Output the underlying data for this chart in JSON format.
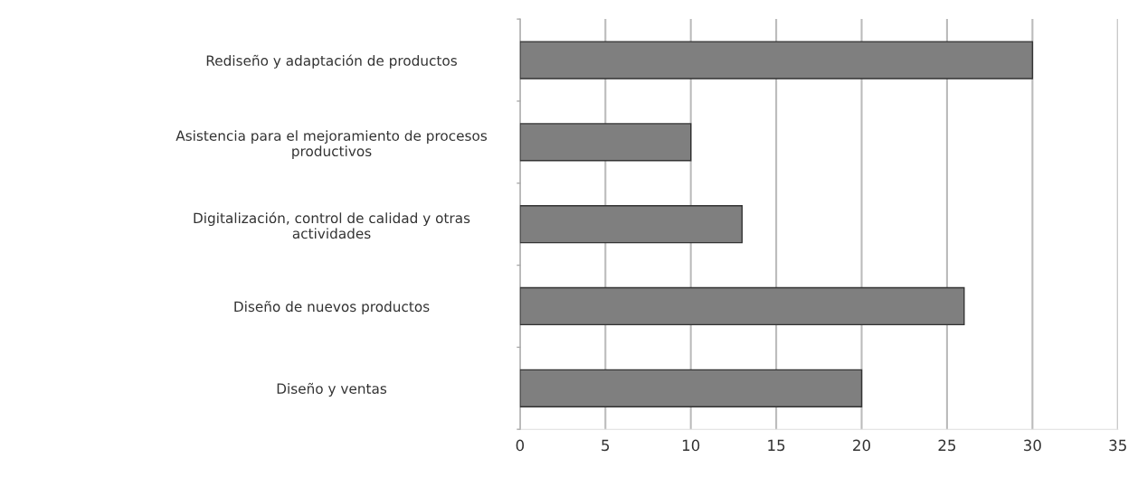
{
  "chart_data": {
    "type": "bar",
    "orientation": "horizontal",
    "categories": [
      "Rediseño y adaptación de productos",
      "Asistencia para el mejoramiento de procesos\nproductivos",
      "Digitalización, control de calidad y otras\nactividades",
      "Diseño de nuevos productos",
      "Diseño y ventas"
    ],
    "values": [
      30,
      10,
      13,
      26,
      20
    ],
    "color": "#7f7f7f",
    "xlim": [
      0,
      35
    ],
    "xticks": [
      0,
      5,
      10,
      15,
      20,
      25,
      30,
      35
    ],
    "grid": "x"
  }
}
